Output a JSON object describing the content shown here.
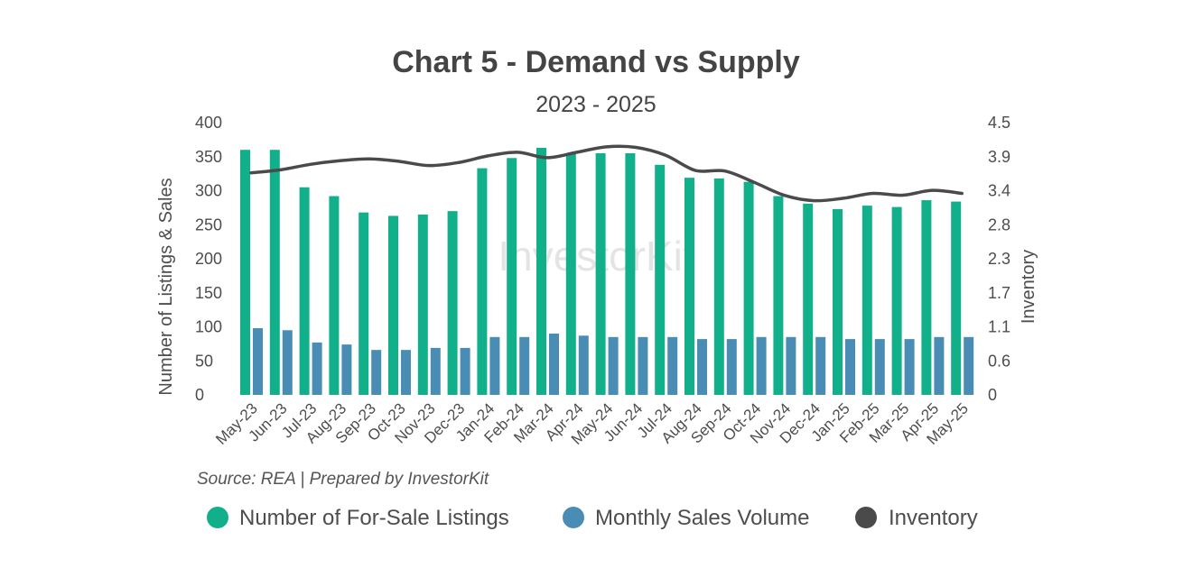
{
  "chart_data": {
    "type": "bar+line",
    "title": "Chart 5 - Demand vs Supply",
    "subtitle": "2023 - 2025",
    "ylabel_left": "Number of Listings & Sales",
    "ylabel_right": "Inventory",
    "ylim_left": [
      0,
      400
    ],
    "ylim_right": [
      0,
      4.5
    ],
    "yticks_left": [
      "400",
      "350",
      "300",
      "250",
      "200",
      "150",
      "100",
      "50",
      "0"
    ],
    "yticks_right": [
      "4.5",
      "3.9",
      "3.4",
      "2.8",
      "2.3",
      "1.7",
      "1.1",
      "0.6",
      "0"
    ],
    "categories": [
      "May-23",
      "Jun-23",
      "Jul-23",
      "Aug-23",
      "Sep-23",
      "Oct-23",
      "Nov-23",
      "Dec-23",
      "Jan-24",
      "Feb-24",
      "Mar-24",
      "Apr-24",
      "May-24",
      "Jun-24",
      "Jul-24",
      "Aug-24",
      "Sep-24",
      "Oct-24",
      "Nov-24",
      "Dec-24",
      "Jan-25",
      "Feb-25",
      "Mar-25",
      "Apr-25",
      "May-25"
    ],
    "series": [
      {
        "name": "Number of For-Sale Listings",
        "type": "bar",
        "color": "#12b08a",
        "values": [
          360,
          360,
          305,
          292,
          268,
          263,
          265,
          270,
          333,
          348,
          363,
          354,
          355,
          355,
          338,
          319,
          318,
          313,
          292,
          281,
          273,
          278,
          276,
          286,
          284
        ]
      },
      {
        "name": "Monthly Sales Volume",
        "type": "bar",
        "color": "#4a8db4",
        "values": [
          98,
          95,
          77,
          74,
          66,
          66,
          69,
          69,
          85,
          85,
          90,
          87,
          85,
          85,
          85,
          82,
          82,
          85,
          85,
          85,
          82,
          82,
          82,
          85,
          85
        ]
      },
      {
        "name": "Inventory",
        "type": "line",
        "color": "#4a4a4a",
        "values": [
          3.67,
          3.72,
          3.81,
          3.87,
          3.9,
          3.86,
          3.79,
          3.84,
          3.95,
          4.01,
          3.92,
          4.01,
          4.1,
          4.09,
          3.96,
          3.71,
          3.7,
          3.51,
          3.3,
          3.21,
          3.25,
          3.33,
          3.3,
          3.38,
          3.33
        ]
      }
    ],
    "source": "Source: REA | Prepared by InvestorKit",
    "watermark": "InvestorKit",
    "legend_position": "bottom"
  }
}
